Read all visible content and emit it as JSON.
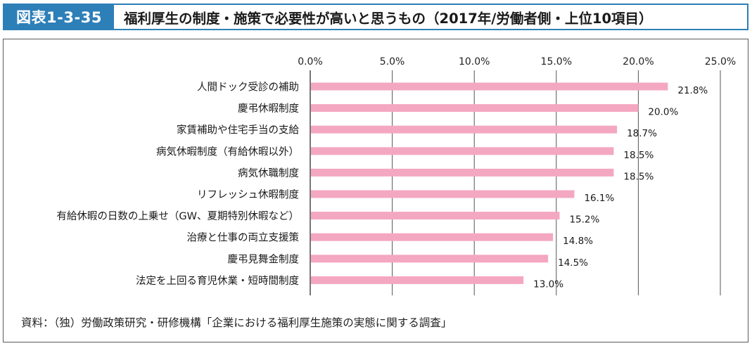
{
  "header": {
    "figure_number": "図表1-3-35",
    "title": "福利厚生の制度・施策で必要性が高いと思うもの（2017年/労働者側・上位10項目）"
  },
  "source": "資料：（独）労働政策研究・研修機構「企業における福利厚生施策の実態に関する調査」",
  "colors": {
    "bar": "#f4a7c1",
    "accent": "#2d7fb8",
    "grid": "#555555"
  },
  "chart_data": {
    "type": "bar",
    "orientation": "horizontal",
    "categories": [
      "人間ドック受診の補助",
      "慶弔休暇制度",
      "家賃補助や住宅手当の支給",
      "病気休暇制度（有給休暇以外）",
      "病気休職制度",
      "リフレッシュ休暇制度",
      "有給休暇の日数の上乗せ（GW、夏期特別休暇など）",
      "治療と仕事の両立支援策",
      "慶弔見舞金制度",
      "法定を上回る育児休業・短時間制度"
    ],
    "values": [
      21.8,
      20.0,
      18.7,
      18.5,
      18.5,
      16.1,
      15.2,
      14.8,
      14.5,
      13.0
    ],
    "value_labels": [
      "21.8%",
      "20.0%",
      "18.7%",
      "18.5%",
      "18.5%",
      "16.1%",
      "15.2%",
      "14.8%",
      "14.5%",
      "13.0%"
    ],
    "xlim": [
      0,
      25
    ],
    "ticks": [
      0,
      5,
      10,
      15,
      20,
      25
    ],
    "tick_labels": [
      "0.0%",
      "5.0%",
      "10.0%",
      "15.0%",
      "20.0%",
      "25.0%"
    ],
    "grid": true,
    "axis_position": "top"
  }
}
